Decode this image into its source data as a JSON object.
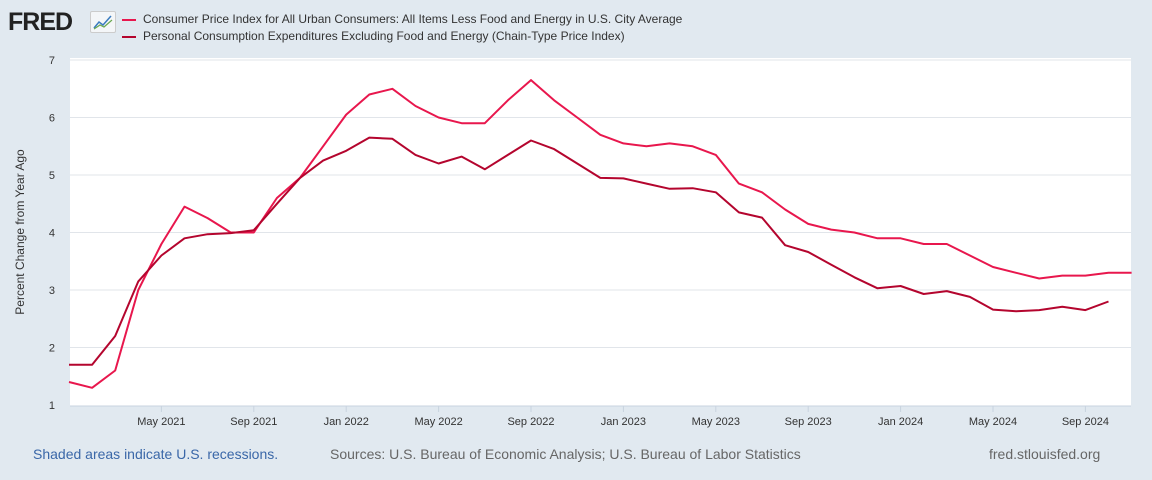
{
  "logo": "FRED",
  "legend": [
    {
      "label": "Consumer Price Index for All Urban Consumers: All Items Less Food and Energy in U.S. City Average",
      "color": "#e8174d"
    },
    {
      "label": "Personal Consumption Expenditures Excluding Food and Energy (Chain-Type Price Index)",
      "color": "#b4052e"
    }
  ],
  "footer": {
    "recessions": "Shaded areas indicate U.S. recessions.",
    "sources": "Sources: U.S. Bureau of Economic Analysis; U.S. Bureau of Labor Statistics",
    "site": "fred.stlouisfed.org"
  },
  "chart_data": {
    "type": "line",
    "title": "",
    "xlabel": "",
    "ylabel": "Percent Change from Year Ago",
    "ylim": [
      1,
      7
    ],
    "yticks": [
      1,
      2,
      3,
      4,
      5,
      6,
      7
    ],
    "x_start": "Jan 2021",
    "x_end": "Nov 2024",
    "xticks": [
      {
        "month": 4,
        "label": "May 2021"
      },
      {
        "month": 8,
        "label": "Sep 2021"
      },
      {
        "month": 12,
        "label": "Jan 2022"
      },
      {
        "month": 16,
        "label": "May 2022"
      },
      {
        "month": 20,
        "label": "Sep 2022"
      },
      {
        "month": 24,
        "label": "Jan 2023"
      },
      {
        "month": 28,
        "label": "May 2023"
      },
      {
        "month": 32,
        "label": "Sep 2023"
      },
      {
        "month": 36,
        "label": "Jan 2024"
      },
      {
        "month": 40,
        "label": "May 2024"
      },
      {
        "month": 44,
        "label": "Sep 2024"
      }
    ],
    "grid": true,
    "legend_placement": "top-left",
    "series": [
      {
        "name": "Consumer Price Index for All Urban Consumers: All Items Less Food and Energy in U.S. City Average",
        "color": "#e8174d",
        "values": [
          1.4,
          1.3,
          1.6,
          3.0,
          3.8,
          4.45,
          4.25,
          4.0,
          4.0,
          4.6,
          4.95,
          5.5,
          6.05,
          6.4,
          6.5,
          6.2,
          6.0,
          5.9,
          5.9,
          6.3,
          6.65,
          6.3,
          6.0,
          5.7,
          5.55,
          5.5,
          5.55,
          5.5,
          5.35,
          4.85,
          4.7,
          4.4,
          4.15,
          4.05,
          4.0,
          3.9,
          3.9,
          3.8,
          3.8,
          3.6,
          3.4,
          3.3,
          3.2,
          3.25,
          3.25,
          3.3,
          3.3
        ]
      },
      {
        "name": "Personal Consumption Expenditures Excluding Food and Energy (Chain-Type Price Index)",
        "color": "#b4052e",
        "values": [
          1.7,
          1.7,
          2.2,
          3.15,
          3.6,
          3.9,
          3.97,
          3.99,
          4.04,
          4.5,
          4.95,
          5.25,
          5.42,
          5.65,
          5.63,
          5.35,
          5.2,
          5.32,
          5.1,
          5.35,
          5.6,
          5.45,
          5.2,
          4.95,
          4.94,
          4.85,
          4.76,
          4.77,
          4.7,
          4.35,
          4.26,
          3.78,
          3.66,
          3.44,
          3.22,
          3.03,
          3.07,
          2.93,
          2.98,
          2.88,
          2.66,
          2.63,
          2.65,
          2.71,
          2.65,
          2.8
        ]
      }
    ]
  }
}
